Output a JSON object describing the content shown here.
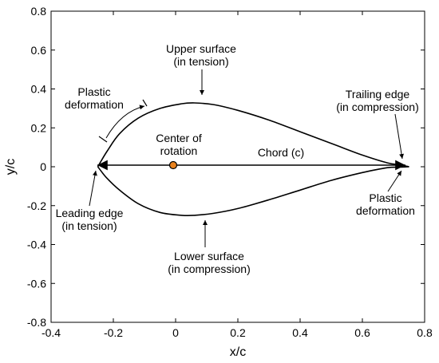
{
  "axes": {
    "xlabel": "x/c",
    "ylabel": "y/c",
    "xlim": [
      -0.4,
      0.8
    ],
    "ylim": [
      -0.8,
      0.8
    ],
    "xticks": [
      "-0.4",
      "-0.2",
      "0",
      "0.2",
      "0.4",
      "0.6",
      "0.8"
    ],
    "yticks": [
      "0.8",
      "0.6",
      "0.4",
      "0.2",
      "0",
      "-0.2",
      "-0.4",
      "-0.6",
      "-0.8"
    ],
    "grid": false
  },
  "annotations": {
    "upper_surface": [
      "Upper surface",
      "(in tension)"
    ],
    "plastic_upper": [
      "Plastic",
      "deformation"
    ],
    "trailing_edge": [
      "Trailing edge",
      "(in compression)"
    ],
    "center": [
      "Center of",
      "rotation"
    ],
    "chord": "Chord (c)",
    "leading_edge": [
      "Leading edge",
      "(in tension)"
    ],
    "plastic_lower": [
      "Plastic",
      "deformation"
    ],
    "lower_surface": [
      "Lower surface",
      "(in compression)"
    ]
  },
  "colors": {
    "outline": "#000000",
    "center_marker": "#e8821e"
  },
  "chart_data": {
    "type": "line",
    "series": [
      {
        "x": [
          -0.25,
          -0.22,
          -0.18,
          -0.12,
          -0.05,
          0.02,
          0.06,
          0.12,
          0.2,
          0.3,
          0.4,
          0.5,
          0.6,
          0.68,
          0.72,
          0.75
        ],
        "y": [
          0,
          0.08,
          0.17,
          0.25,
          0.3,
          0.324,
          0.328,
          0.32,
          0.29,
          0.24,
          0.18,
          0.12,
          0.06,
          0.02,
          0.01,
          0
        ]
      },
      {
        "x": [
          -0.25,
          -0.22,
          -0.18,
          -0.12,
          -0.05,
          0.02,
          0.06,
          0.12,
          0.2,
          0.3,
          0.4,
          0.5,
          0.6,
          0.68,
          0.72,
          0.75
        ],
        "y": [
          0,
          -0.06,
          -0.12,
          -0.19,
          -0.235,
          -0.25,
          -0.25,
          -0.24,
          -0.215,
          -0.17,
          -0.12,
          -0.07,
          -0.03,
          -0.005,
          -0.002,
          0
        ]
      }
    ],
    "chord": {
      "x": [
        -0.25,
        0.75
      ],
      "y": [
        0,
        0
      ]
    },
    "center_of_rotation": {
      "x": 0,
      "y": 0
    }
  }
}
